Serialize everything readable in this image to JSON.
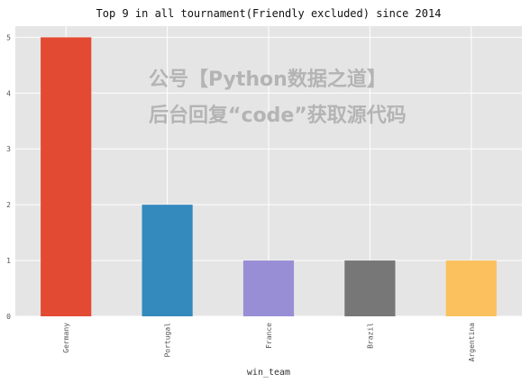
{
  "chart_data": {
    "type": "bar",
    "title": "Top 9 in all tournament(Friendly excluded) since 2014",
    "xlabel": "win_team",
    "ylabel": "",
    "categories": [
      "Germany",
      "Portugal",
      "France",
      "Brazil",
      "Argentina"
    ],
    "values": [
      5,
      2,
      1,
      1,
      1
    ],
    "colors": [
      "#E24A33",
      "#348ABD",
      "#988ED5",
      "#777777",
      "#FBC15E"
    ],
    "ylim": [
      0,
      5.2
    ],
    "yticks": [
      "0",
      "1",
      "2",
      "3",
      "4",
      "5"
    ],
    "grid": true,
    "background": "#E5E5E5",
    "legend": "none"
  },
  "watermark": {
    "line1": "公号【Python数据之道】",
    "line2": "后台回复“code”获取源代码"
  }
}
